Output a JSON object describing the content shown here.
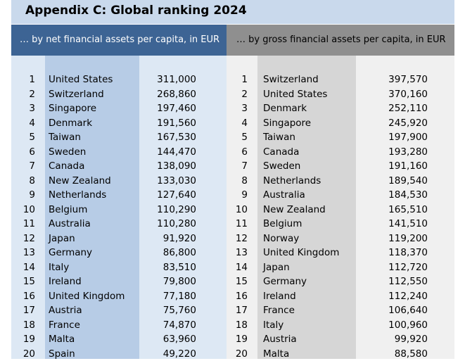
{
  "title": "Appendix C: Global ranking 2024",
  "left": {
    "header": "… by net financial assets per capita, in EUR",
    "rows": [
      {
        "rank": "1",
        "country": "United States",
        "value": "311,000"
      },
      {
        "rank": "2",
        "country": "Switzerland",
        "value": "268,860"
      },
      {
        "rank": "3",
        "country": "Singapore",
        "value": "197,460"
      },
      {
        "rank": "4",
        "country": "Denmark",
        "value": "191,560"
      },
      {
        "rank": "5",
        "country": "Taiwan",
        "value": "167,530"
      },
      {
        "rank": "6",
        "country": "Sweden",
        "value": "144,470"
      },
      {
        "rank": "7",
        "country": "Canada",
        "value": "138,090"
      },
      {
        "rank": "8",
        "country": "New Zealand",
        "value": "133,030"
      },
      {
        "rank": "9",
        "country": "Netherlands",
        "value": "127,640"
      },
      {
        "rank": "10",
        "country": "Belgium",
        "value": "110,290"
      },
      {
        "rank": "11",
        "country": "Australia",
        "value": "110,280"
      },
      {
        "rank": "12",
        "country": "Japan",
        "value": "91,920"
      },
      {
        "rank": "13",
        "country": "Germany",
        "value": "86,800"
      },
      {
        "rank": "14",
        "country": "Italy",
        "value": "83,510"
      },
      {
        "rank": "15",
        "country": "Ireland",
        "value": "79,800"
      },
      {
        "rank": "16",
        "country": "United Kingdom",
        "value": "77,180"
      },
      {
        "rank": "17",
        "country": "Austria",
        "value": "75,760"
      },
      {
        "rank": "18",
        "country": "France",
        "value": "74,870"
      },
      {
        "rank": "19",
        "country": "Malta",
        "value": "63,960"
      },
      {
        "rank": "20",
        "country": "Spain",
        "value": "49,220"
      }
    ]
  },
  "right": {
    "header": "… by gross financial assets per capita, in EUR",
    "rows": [
      {
        "rank": "1",
        "country": "Switzerland",
        "value": "397,570"
      },
      {
        "rank": "2",
        "country": "United States",
        "value": "370,160"
      },
      {
        "rank": "3",
        "country": "Denmark",
        "value": "252,110"
      },
      {
        "rank": "4",
        "country": "Singapore",
        "value": "245,920"
      },
      {
        "rank": "5",
        "country": "Taiwan",
        "value": "197,900"
      },
      {
        "rank": "6",
        "country": "Canada",
        "value": "193,280"
      },
      {
        "rank": "7",
        "country": "Sweden",
        "value": "191,160"
      },
      {
        "rank": "8",
        "country": "Netherlands",
        "value": "189,540"
      },
      {
        "rank": "9",
        "country": "Australia",
        "value": "184,530"
      },
      {
        "rank": "10",
        "country": "New Zealand",
        "value": "165,510"
      },
      {
        "rank": "11",
        "country": "Belgium",
        "value": "141,510"
      },
      {
        "rank": "12",
        "country": "Norway",
        "value": "119,200"
      },
      {
        "rank": "13",
        "country": "United Kingdom",
        "value": "118,370"
      },
      {
        "rank": "14",
        "country": "Japan",
        "value": "112,720"
      },
      {
        "rank": "15",
        "country": "Germany",
        "value": "112,550"
      },
      {
        "rank": "16",
        "country": "Ireland",
        "value": "112,240"
      },
      {
        "rank": "17",
        "country": "France",
        "value": "106,640"
      },
      {
        "rank": "18",
        "country": "Italy",
        "value": "100,960"
      },
      {
        "rank": "19",
        "country": "Austria",
        "value": "99,920"
      },
      {
        "rank": "20",
        "country": "Malta",
        "value": "88,580"
      }
    ]
  }
}
